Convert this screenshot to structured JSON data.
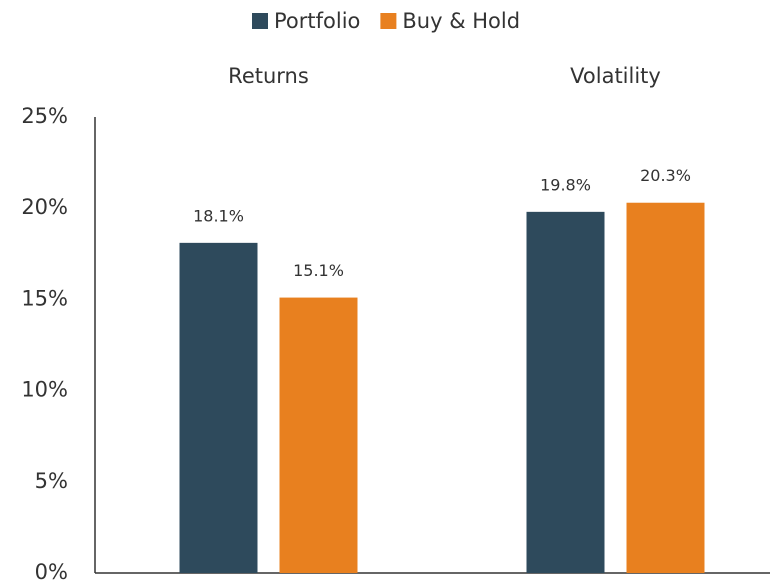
{
  "chart_data": {
    "type": "bar",
    "categories": [
      "Returns",
      "Volatility"
    ],
    "series": [
      {
        "name": "Portfolio",
        "color": "#2e4a5c",
        "values": [
          18.1,
          19.8
        ],
        "value_labels": [
          "18.1%",
          "19.8%"
        ]
      },
      {
        "name": "Buy & Hold",
        "color": "#e8801f",
        "values": [
          15.1,
          20.3
        ],
        "value_labels": [
          "15.1%",
          "20.3%"
        ]
      }
    ],
    "ylim": [
      0,
      25
    ],
    "yticks": [
      {
        "value": 0,
        "label": "0%"
      },
      {
        "value": 5,
        "label": "5%"
      },
      {
        "value": 10,
        "label": "10%"
      },
      {
        "value": 15,
        "label": "15%"
      },
      {
        "value": 20,
        "label": "20%"
      },
      {
        "value": 25,
        "label": "25%"
      }
    ],
    "grid": false,
    "legend": "top"
  }
}
